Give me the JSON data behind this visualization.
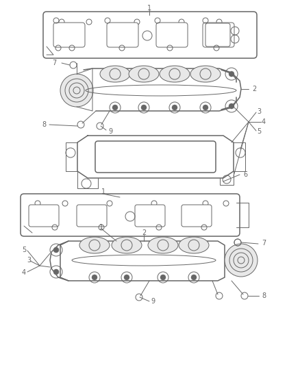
{
  "bg_color": "#ffffff",
  "line_color": "#666666",
  "label_color": "#666666",
  "figsize": [
    4.38,
    5.33
  ],
  "dpi": 100,
  "lw_main": 0.7,
  "lw_thick": 1.1,
  "fontsize": 7.0
}
